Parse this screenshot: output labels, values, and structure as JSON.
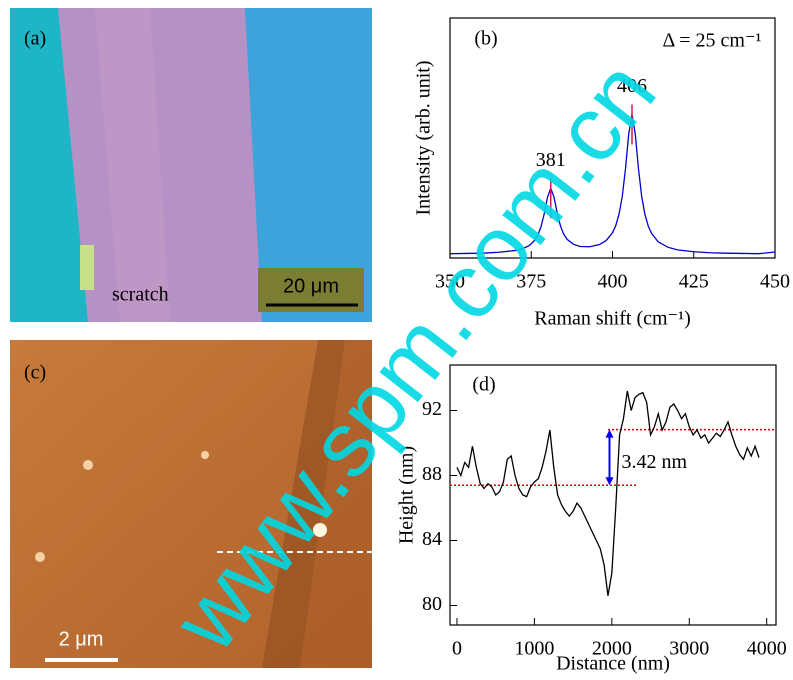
{
  "watermark": "www.spm.com.cn",
  "images": [
    {
      "label": "(a)",
      "annotations": [
        "scratch",
        "20 μm"
      ]
    },
    {
      "label": "(c)",
      "annotations": [
        "2 μm"
      ]
    }
  ],
  "chart_data": [
    {
      "type": "line",
      "panel_label": "(b)",
      "annotation": "Δ = 25 cm⁻¹",
      "x_label": "Raman shift (cm⁻¹)",
      "y_label": "Intensity (arb. unit)",
      "x": [
        350,
        355,
        360,
        365,
        370,
        372,
        374,
        375,
        376,
        377,
        378,
        379,
        380,
        381,
        382,
        383,
        384,
        385,
        386,
        388,
        390,
        393,
        396,
        398,
        400,
        401,
        402,
        403,
        404,
        405,
        406,
        407,
        408,
        409,
        410,
        411,
        412,
        414,
        417,
        420,
        425,
        430,
        435,
        440,
        445,
        450
      ],
      "series": [
        {
          "color": "#0000cc",
          "values": [
            0.018,
            0.019,
            0.02,
            0.024,
            0.031,
            0.037,
            0.049,
            0.059,
            0.073,
            0.095,
            0.13,
            0.185,
            0.253,
            0.291,
            0.254,
            0.186,
            0.133,
            0.099,
            0.078,
            0.057,
            0.048,
            0.047,
            0.056,
            0.072,
            0.105,
            0.135,
            0.182,
            0.256,
            0.372,
            0.518,
            0.598,
            0.517,
            0.371,
            0.255,
            0.18,
            0.133,
            0.103,
            0.068,
            0.045,
            0.034,
            0.026,
            0.022,
            0.02,
            0.019,
            0.018,
            0.025
          ]
        }
      ],
      "xlim": [
        350,
        450
      ],
      "ylim": [
        0,
        1
      ],
      "xticks": [
        350,
        375,
        400,
        425,
        450
      ],
      "peak_markers": {
        "x": [
          381,
          406
        ],
        "color": "#d4145a"
      }
    },
    {
      "type": "line",
      "panel_label": "(d)",
      "x_label": "Distance (nm)",
      "y_label": "Height (nm)",
      "x": [
        0,
        50,
        100,
        150,
        200,
        250,
        300,
        350,
        400,
        450,
        500,
        550,
        600,
        650,
        700,
        750,
        800,
        850,
        900,
        950,
        1000,
        1050,
        1100,
        1150,
        1200,
        1250,
        1300,
        1350,
        1400,
        1450,
        1500,
        1550,
        1600,
        1650,
        1700,
        1750,
        1800,
        1850,
        1900,
        1950,
        2000,
        2050,
        2100,
        2150,
        2200,
        2250,
        2300,
        2350,
        2400,
        2450,
        2500,
        2550,
        2600,
        2650,
        2700,
        2750,
        2800,
        2850,
        2900,
        2950,
        3000,
        3050,
        3100,
        3150,
        3200,
        3250,
        3300,
        3350,
        3400,
        3450,
        3500,
        3550,
        3600,
        3650,
        3700,
        3750,
        3800,
        3850,
        3900
      ],
      "series": [
        {
          "color": "#000000",
          "values": [
            88.5,
            88.0,
            88.8,
            88.5,
            89.8,
            88.5,
            87.5,
            87.2,
            87.5,
            87.3,
            86.8,
            87.0,
            87.6,
            89.0,
            89.2,
            88.0,
            87.2,
            86.8,
            86.7,
            87.3,
            87.6,
            87.8,
            88.5,
            89.5,
            90.8,
            88.5,
            86.8,
            86.2,
            85.8,
            85.5,
            85.8,
            86.3,
            86.0,
            85.5,
            85.0,
            84.5,
            84.0,
            83.5,
            82.5,
            80.6,
            82.0,
            86.0,
            90.5,
            91.5,
            93.2,
            92.0,
            92.8,
            93.0,
            93.1,
            92.5,
            90.5,
            91.0,
            91.8,
            90.8,
            91.3,
            92.2,
            92.4,
            92.0,
            91.5,
            91.8,
            91.0,
            90.5,
            90.8,
            90.3,
            90.5,
            90.0,
            90.3,
            90.6,
            90.4,
            90.8,
            91.3,
            90.5,
            89.8,
            89.3,
            89.0,
            89.7,
            89.2,
            89.8,
            89.1
          ]
        }
      ],
      "xlim": [
        -90,
        4120
      ],
      "ylim": [
        78.8,
        94.8
      ],
      "xticks": [
        0,
        1000,
        2000,
        3000,
        4000
      ],
      "yticks": [
        80,
        84,
        88,
        92
      ],
      "reference_lines": [
        {
          "y": 87.4,
          "x": [
            -90,
            2330
          ],
          "color": "#e00000"
        },
        {
          "y": 90.82,
          "x": [
            1950,
            4120
          ],
          "color": "#e00000"
        }
      ],
      "step": {
        "x": 1970,
        "y": [
          87.4,
          90.82
        ],
        "label": "3.42 nm",
        "color": "#0000ee"
      }
    }
  ]
}
